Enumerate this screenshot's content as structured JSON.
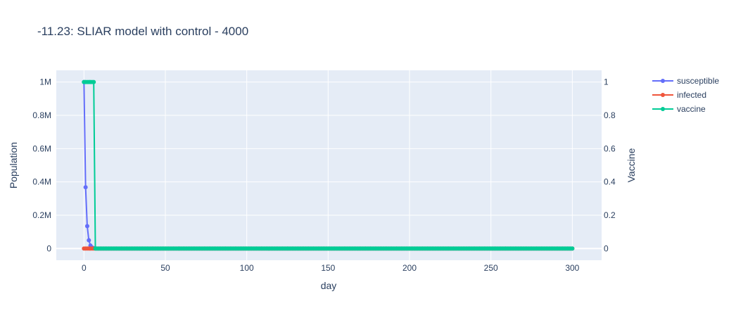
{
  "chart_data": {
    "type": "line",
    "title": "-11.23: SLIAR model with control - 4000",
    "xlabel": "day",
    "ylabel": "Population",
    "y2label": "Vaccine",
    "xlim": [
      -17,
      318
    ],
    "ylim": [
      -70000,
      1070000
    ],
    "y2lim": [
      -0.07,
      1.07
    ],
    "x_ticks": [
      0,
      50,
      100,
      150,
      200,
      250,
      300
    ],
    "y_ticks": [
      0,
      200000,
      400000,
      600000,
      800000,
      1000000
    ],
    "y_tick_labels": [
      "0",
      "0.2M",
      "0.4M",
      "0.6M",
      "0.8M",
      "1M"
    ],
    "y2_ticks": [
      0,
      0.2,
      0.4,
      0.6,
      0.8,
      1
    ],
    "y2_tick_labels": [
      "0",
      "0.2",
      "0.4",
      "0.6",
      "0.8",
      "1"
    ],
    "grid": true,
    "legend_position": "top-right",
    "x_range": [
      0,
      300
    ],
    "series": [
      {
        "name": "susceptible",
        "axis": "y",
        "color": "#636efa",
        "points": [
          [
            0,
            1000000
          ],
          [
            1,
            368000
          ],
          [
            2,
            135000
          ],
          [
            3,
            50000
          ],
          [
            4,
            18000
          ],
          [
            5,
            6600
          ],
          [
            6,
            2400
          ],
          [
            7,
            900
          ],
          [
            8,
            330
          ],
          [
            9,
            120
          ],
          [
            10,
            45
          ],
          [
            12,
            6
          ],
          [
            15,
            0
          ],
          [
            300,
            0
          ]
        ]
      },
      {
        "name": "infected",
        "axis": "y",
        "color": "#ef553b",
        "points": [
          [
            0,
            0
          ],
          [
            300,
            0
          ]
        ]
      },
      {
        "name": "vaccine",
        "axis": "y2",
        "color": "#00cc96",
        "points": [
          [
            0,
            1
          ],
          [
            1,
            1
          ],
          [
            2,
            1
          ],
          [
            3,
            1
          ],
          [
            4,
            1
          ],
          [
            5,
            1
          ],
          [
            6,
            1
          ],
          [
            7,
            0
          ],
          [
            300,
            0
          ]
        ]
      }
    ]
  }
}
